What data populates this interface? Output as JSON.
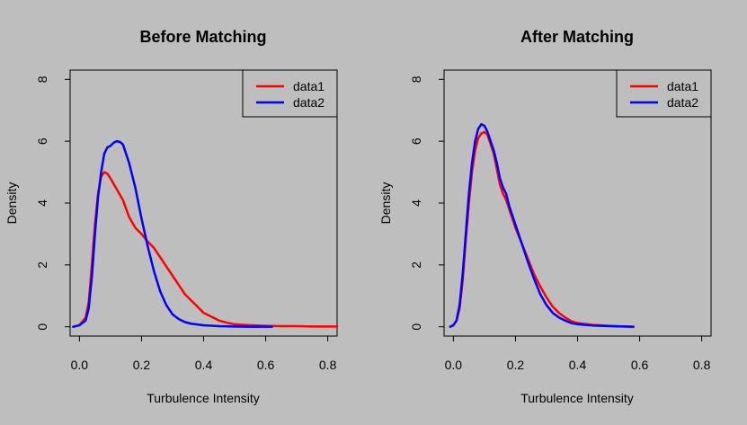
{
  "colors": {
    "background": "#bebebe",
    "data1": "#ff0000",
    "data2": "#0000ff",
    "axis": "#000000"
  },
  "chart_data": [
    {
      "type": "line",
      "title": "Before Matching",
      "xlabel": "Turbulence Intensity",
      "ylabel": "Density",
      "xlim": [
        -0.03,
        0.83
      ],
      "ylim": [
        -0.3,
        8.3
      ],
      "xticks": [
        0.0,
        0.2,
        0.4,
        0.6,
        0.8
      ],
      "xtick_labels": [
        "0.0",
        "0.2",
        "0.4",
        "0.6",
        "0.8"
      ],
      "yticks": [
        0,
        2,
        4,
        6,
        8
      ],
      "ytick_labels": [
        "0",
        "2",
        "4",
        "6",
        "8"
      ],
      "legend_position": "top-right",
      "series": [
        {
          "name": "data1",
          "color": "#ff0000",
          "x": [
            -0.02,
            0.0,
            0.02,
            0.03,
            0.04,
            0.05,
            0.06,
            0.07,
            0.08,
            0.09,
            0.1,
            0.12,
            0.14,
            0.16,
            0.18,
            0.2,
            0.22,
            0.24,
            0.26,
            0.28,
            0.3,
            0.32,
            0.34,
            0.36,
            0.38,
            0.4,
            0.42,
            0.45,
            0.48,
            0.5,
            0.55,
            0.6,
            0.65,
            0.7,
            0.75,
            0.8,
            0.83
          ],
          "y": [
            0.0,
            0.05,
            0.3,
            0.8,
            2.0,
            3.3,
            4.3,
            4.85,
            5.0,
            4.95,
            4.8,
            4.45,
            4.1,
            3.55,
            3.2,
            3.0,
            2.75,
            2.55,
            2.25,
            1.95,
            1.65,
            1.35,
            1.05,
            0.85,
            0.65,
            0.45,
            0.35,
            0.2,
            0.12,
            0.08,
            0.05,
            0.03,
            0.02,
            0.02,
            0.01,
            0.01,
            0.01
          ]
        },
        {
          "name": "data2",
          "color": "#0000ff",
          "x": [
            -0.02,
            0.0,
            0.02,
            0.03,
            0.04,
            0.05,
            0.06,
            0.07,
            0.08,
            0.09,
            0.1,
            0.11,
            0.12,
            0.13,
            0.14,
            0.15,
            0.16,
            0.17,
            0.18,
            0.2,
            0.22,
            0.24,
            0.26,
            0.28,
            0.3,
            0.32,
            0.34,
            0.36,
            0.4,
            0.45,
            0.5,
            0.55,
            0.6,
            0.62
          ],
          "y": [
            0.0,
            0.05,
            0.2,
            0.6,
            1.6,
            3.0,
            4.2,
            5.0,
            5.6,
            5.8,
            5.85,
            5.95,
            6.0,
            5.98,
            5.9,
            5.6,
            5.3,
            4.9,
            4.5,
            3.5,
            2.6,
            1.8,
            1.15,
            0.7,
            0.4,
            0.25,
            0.15,
            0.1,
            0.05,
            0.02,
            0.01,
            0.0,
            0.0,
            0.0
          ]
        }
      ]
    },
    {
      "type": "line",
      "title": "After Matching",
      "xlabel": "Turbulence Intensity",
      "ylabel": "Density",
      "xlim": [
        -0.03,
        0.83
      ],
      "ylim": [
        -0.3,
        8.3
      ],
      "xticks": [
        0.0,
        0.2,
        0.4,
        0.6,
        0.8
      ],
      "xtick_labels": [
        "0.0",
        "0.2",
        "0.4",
        "0.6",
        "0.8"
      ],
      "yticks": [
        0,
        2,
        4,
        6,
        8
      ],
      "ytick_labels": [
        "0",
        "2",
        "4",
        "6",
        "8"
      ],
      "legend_position": "top-right",
      "series": [
        {
          "name": "data1",
          "color": "#ff0000",
          "x": [
            -0.01,
            0.0,
            0.01,
            0.02,
            0.03,
            0.04,
            0.05,
            0.06,
            0.07,
            0.08,
            0.09,
            0.1,
            0.11,
            0.12,
            0.13,
            0.14,
            0.15,
            0.16,
            0.17,
            0.18,
            0.2,
            0.22,
            0.24,
            0.26,
            0.28,
            0.3,
            0.32,
            0.34,
            0.36,
            0.38,
            0.4,
            0.45,
            0.5,
            0.55,
            0.58
          ],
          "y": [
            0.0,
            0.05,
            0.2,
            0.6,
            1.5,
            2.8,
            4.0,
            5.0,
            5.7,
            6.1,
            6.25,
            6.3,
            6.2,
            5.9,
            5.6,
            5.1,
            4.6,
            4.3,
            4.1,
            3.8,
            3.2,
            2.7,
            2.2,
            1.7,
            1.3,
            0.95,
            0.65,
            0.45,
            0.3,
            0.18,
            0.12,
            0.06,
            0.03,
            0.01,
            0.0
          ]
        },
        {
          "name": "data2",
          "color": "#0000ff",
          "x": [
            -0.01,
            0.0,
            0.01,
            0.02,
            0.03,
            0.04,
            0.05,
            0.06,
            0.07,
            0.08,
            0.09,
            0.1,
            0.11,
            0.12,
            0.13,
            0.14,
            0.15,
            0.16,
            0.17,
            0.18,
            0.2,
            0.22,
            0.24,
            0.26,
            0.28,
            0.3,
            0.32,
            0.34,
            0.36,
            0.38,
            0.4,
            0.45,
            0.5,
            0.55,
            0.58
          ],
          "y": [
            0.0,
            0.05,
            0.2,
            0.7,
            1.7,
            3.0,
            4.3,
            5.3,
            6.0,
            6.4,
            6.55,
            6.5,
            6.3,
            6.0,
            5.7,
            5.3,
            4.8,
            4.5,
            4.3,
            3.9,
            3.3,
            2.7,
            2.1,
            1.55,
            1.05,
            0.7,
            0.45,
            0.3,
            0.2,
            0.12,
            0.08,
            0.04,
            0.02,
            0.01,
            0.0
          ]
        }
      ]
    }
  ]
}
